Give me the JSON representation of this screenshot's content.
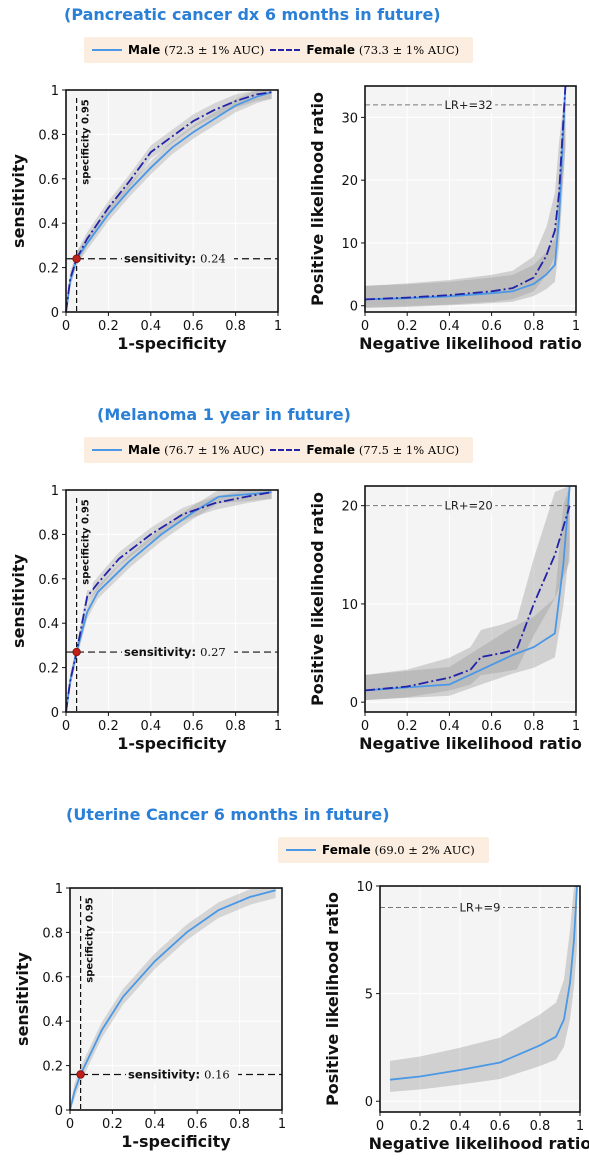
{
  "panels": [
    {
      "title": "(Pancreatic cancer dx 6 months in future)",
      "legend": [
        {
          "name": "Male",
          "auc": "(72.3 ± 1% AUC)",
          "style": "male"
        },
        {
          "name": "Female",
          "auc": "(73.3 ± 1% AUC)",
          "style": "female"
        }
      ],
      "spec_label": "specificity 0.95",
      "sens_name": "sensitivity:",
      "sens_value": "0.24",
      "lr_label": "LR+=32"
    },
    {
      "title": "(Melanoma 1 year in future)",
      "legend": [
        {
          "name": "Male",
          "auc": "(76.7 ± 1% AUC)",
          "style": "male"
        },
        {
          "name": "Female",
          "auc": "(77.5 ± 1% AUC)",
          "style": "female"
        }
      ],
      "spec_label": "specificity 0.95",
      "sens_name": "sensitivity:",
      "sens_value": "0.27",
      "lr_label": "LR+=20"
    },
    {
      "title": "(Uterine Cancer 6 months in future)",
      "legend": [
        {
          "name": "Female",
          "auc": "(69.0 ± 2% AUC)",
          "style": "male"
        }
      ],
      "spec_label": "specificity 0.95",
      "sens_name": "sensitivity:",
      "sens_value": "0.16",
      "lr_label": "LR+=9"
    }
  ],
  "chart_data": [
    {
      "type": "line",
      "title": "(Pancreatic cancer dx 6 months in future)",
      "xlabel": "1-specificity",
      "ylabel": "sensitivity",
      "xlim": [
        0,
        1
      ],
      "ylim": [
        0,
        1
      ],
      "xticks": [
        "0",
        "0.2",
        "0.4",
        "0.6",
        "0.8",
        "1"
      ],
      "yticks": [
        "0",
        "0.2",
        "0.4",
        "0.6",
        "0.8",
        "1"
      ],
      "series": [
        {
          "name": "Male",
          "color": "#4a98e6",
          "dash": false,
          "x": [
            0,
            0.02,
            0.05,
            0.1,
            0.2,
            0.3,
            0.4,
            0.5,
            0.6,
            0.7,
            0.8,
            0.9,
            0.97
          ],
          "y": [
            0,
            0.14,
            0.24,
            0.31,
            0.44,
            0.55,
            0.65,
            0.74,
            0.81,
            0.87,
            0.93,
            0.97,
            0.99
          ]
        },
        {
          "name": "Female",
          "color": "#2222aa",
          "dash": true,
          "x": [
            0,
            0.02,
            0.05,
            0.1,
            0.2,
            0.3,
            0.4,
            0.5,
            0.6,
            0.7,
            0.8,
            0.9,
            0.97
          ],
          "y": [
            0,
            0.15,
            0.24,
            0.33,
            0.47,
            0.59,
            0.72,
            0.79,
            0.86,
            0.91,
            0.95,
            0.98,
            0.99
          ]
        }
      ],
      "band": 0.03,
      "operating_point": {
        "x": 0.05,
        "y": 0.24
      }
    },
    {
      "type": "line",
      "title": "(Pancreatic cancer dx 6 months in future)",
      "xlabel": "Negative likelihood ratio",
      "ylabel": "Positive likelihood ratio",
      "xlim": [
        0,
        1
      ],
      "ylim": [
        -1,
        35
      ],
      "xticks": [
        "0",
        "0.2",
        "0.4",
        "0.6",
        "0.8",
        "1"
      ],
      "yticks": [
        "0",
        "10",
        "20",
        "30"
      ],
      "reference_line": 32,
      "series": [
        {
          "name": "Male",
          "color": "#4a98e6",
          "dash": false,
          "x": [
            0,
            0.2,
            0.4,
            0.6,
            0.7,
            0.8,
            0.86,
            0.9,
            0.92,
            0.95
          ],
          "y": [
            1,
            1.2,
            1.5,
            2,
            2.3,
            3.5,
            5,
            6.5,
            14,
            35
          ]
        },
        {
          "name": "Female",
          "color": "#2222aa",
          "dash": true,
          "x": [
            0,
            0.2,
            0.4,
            0.6,
            0.7,
            0.8,
            0.86,
            0.9,
            0.92,
            0.95
          ],
          "y": [
            1,
            1.3,
            1.7,
            2.3,
            2.8,
            4.5,
            8,
            12,
            18,
            35
          ]
        }
      ]
    },
    {
      "type": "line",
      "title": "(Melanoma 1 year in future)",
      "xlabel": "1-specificity",
      "ylabel": "sensitivity",
      "xlim": [
        0,
        1
      ],
      "ylim": [
        0,
        1
      ],
      "xticks": [
        "0",
        "0.2",
        "0.4",
        "0.6",
        "0.8",
        "1"
      ],
      "yticks": [
        "0",
        "0.2",
        "0.4",
        "0.6",
        "0.8",
        "1"
      ],
      "series": [
        {
          "name": "Male",
          "color": "#4a98e6",
          "dash": false,
          "x": [
            0,
            0.02,
            0.05,
            0.1,
            0.15,
            0.3,
            0.45,
            0.6,
            0.72,
            0.85,
            0.97
          ],
          "y": [
            0,
            0.14,
            0.27,
            0.45,
            0.54,
            0.68,
            0.8,
            0.9,
            0.97,
            0.98,
            0.99
          ]
        },
        {
          "name": "Female",
          "color": "#2222aa",
          "dash": true,
          "x": [
            0,
            0.02,
            0.05,
            0.1,
            0.15,
            0.25,
            0.4,
            0.55,
            0.7,
            0.85,
            0.97
          ],
          "y": [
            0,
            0.14,
            0.27,
            0.52,
            0.58,
            0.69,
            0.8,
            0.89,
            0.94,
            0.97,
            0.99
          ]
        }
      ],
      "band": 0.03,
      "operating_point": {
        "x": 0.05,
        "y": 0.27
      }
    },
    {
      "type": "line",
      "title": "(Melanoma 1 year in future)",
      "xlabel": "Negative likelihood ratio",
      "ylabel": "Positive likelihood ratio",
      "xlim": [
        0,
        1
      ],
      "ylim": [
        -1,
        22
      ],
      "xticks": [
        "0",
        "0.2",
        "0.4",
        "0.6",
        "0.8",
        "1"
      ],
      "yticks": [
        "0",
        "10",
        "20"
      ],
      "reference_line": 20,
      "series": [
        {
          "name": "Male",
          "color": "#4a98e6",
          "dash": false,
          "x": [
            0,
            0.2,
            0.4,
            0.5,
            0.6,
            0.7,
            0.8,
            0.9,
            0.94,
            0.97
          ],
          "y": [
            1.2,
            1.5,
            1.8,
            2.8,
            3.8,
            4.8,
            5.6,
            7,
            14,
            22
          ]
        },
        {
          "name": "Female",
          "color": "#2222aa",
          "dash": true,
          "x": [
            0,
            0.2,
            0.4,
            0.5,
            0.55,
            0.65,
            0.72,
            0.8,
            0.9,
            0.97
          ],
          "y": [
            1.2,
            1.6,
            2.5,
            3.3,
            4.6,
            5,
            5.4,
            10,
            15,
            20
          ]
        }
      ]
    },
    {
      "type": "line",
      "title": "(Uterine Cancer 6 months in future)",
      "xlabel": "1-specificity",
      "ylabel": "sensitivity",
      "xlim": [
        0,
        1
      ],
      "ylim": [
        0,
        1
      ],
      "xticks": [
        "0",
        "0.2",
        "0.4",
        "0.6",
        "0.8",
        "1"
      ],
      "yticks": [
        "0",
        "0.2",
        "0.4",
        "0.6",
        "0.8",
        "1"
      ],
      "series": [
        {
          "name": "Female",
          "color": "#4a98e6",
          "dash": false,
          "x": [
            0,
            0.02,
            0.05,
            0.1,
            0.15,
            0.25,
            0.4,
            0.55,
            0.7,
            0.85,
            0.97
          ],
          "y": [
            0,
            0.08,
            0.16,
            0.26,
            0.36,
            0.51,
            0.67,
            0.8,
            0.9,
            0.96,
            0.99
          ]
        }
      ],
      "band": 0.035,
      "operating_point": {
        "x": 0.05,
        "y": 0.16
      }
    },
    {
      "type": "line",
      "title": "(Uterine Cancer 6 months in future)",
      "xlabel": "Negative likelihood ratio",
      "ylabel": "Positive likelihood ratio",
      "xlim": [
        0,
        1
      ],
      "ylim": [
        -0.5,
        10
      ],
      "xticks": [
        "0",
        "0.2",
        "0.4",
        "0.6",
        "0.8",
        "1"
      ],
      "yticks": [
        "0",
        "5",
        "10"
      ],
      "reference_line": 9,
      "series": [
        {
          "name": "Female",
          "color": "#4a98e6",
          "dash": false,
          "x": [
            0.05,
            0.2,
            0.4,
            0.6,
            0.7,
            0.8,
            0.88,
            0.92,
            0.95,
            0.97,
            0.985
          ],
          "y": [
            1,
            1.15,
            1.45,
            1.8,
            2.2,
            2.6,
            3,
            3.8,
            5.5,
            7.5,
            10
          ]
        }
      ]
    }
  ]
}
